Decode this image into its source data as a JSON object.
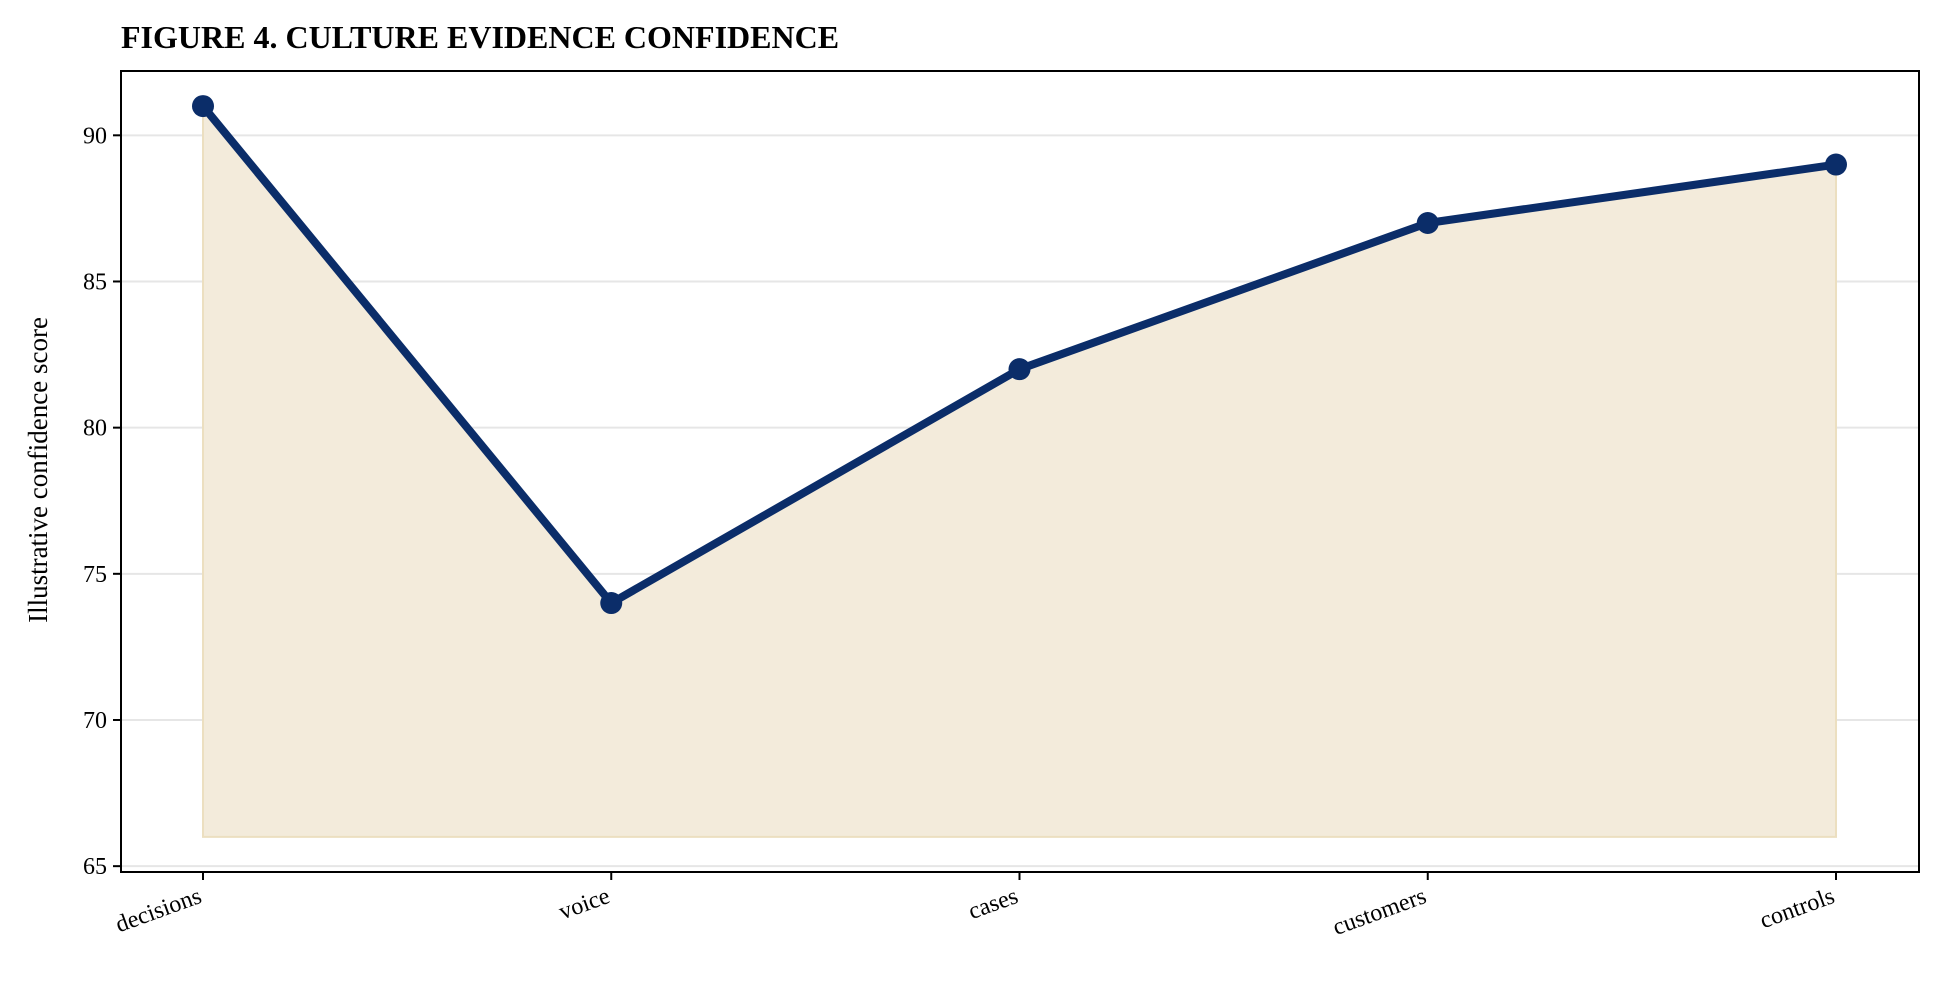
{
  "chart_data": {
    "type": "line",
    "title": "FIGURE 4. CULTURE EVIDENCE CONFIDENCE",
    "xlabel": "",
    "ylabel": "Illustrative confidence score",
    "categories": [
      "decisions",
      "voice",
      "cases",
      "customers",
      "controls"
    ],
    "series": [
      {
        "values": [
          91,
          74,
          82,
          87,
          89
        ]
      }
    ],
    "fill_baseline": 66,
    "ylim": [
      64.8,
      92.2
    ],
    "yticks": [
      65,
      70,
      75,
      80,
      85,
      90
    ],
    "grid": "horizontal",
    "legend": "none",
    "colors": {
      "line": "#0b2d69",
      "fill": "#f3ebdb",
      "fill_edge": "#ecdfc0"
    }
  }
}
